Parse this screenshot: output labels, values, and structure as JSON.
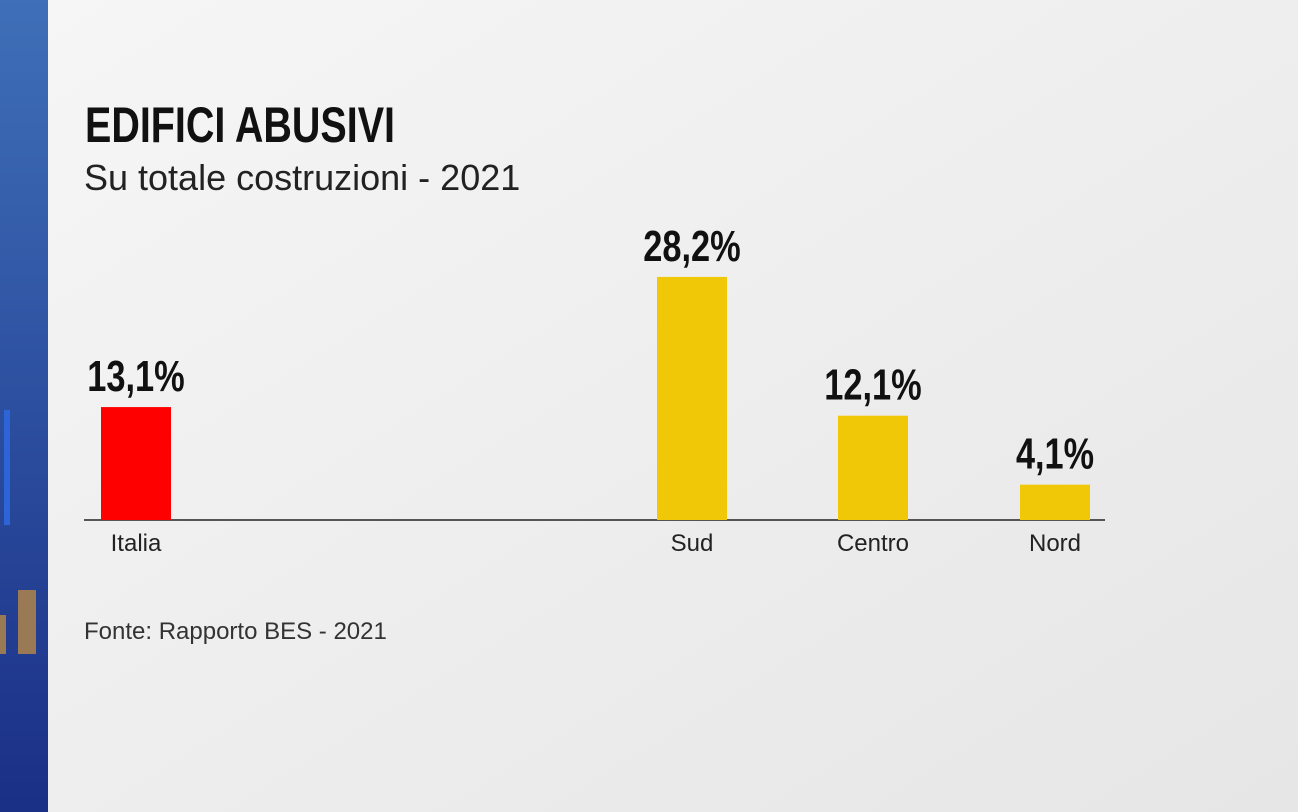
{
  "chart_data": {
    "type": "bar",
    "title": "EDIFICI ABUSIVI",
    "subtitle": "Su totale costruzioni - 2021",
    "categories": [
      "Italia",
      "Sud",
      "Centro",
      "Nord"
    ],
    "values": [
      13.1,
      28.2,
      12.1,
      4.1
    ],
    "value_labels": [
      "13,1%",
      "28,2%",
      "12,1%",
      "4,1%"
    ],
    "colors": [
      "#ff0000",
      "#f0c808",
      "#f0c808",
      "#f0c808"
    ],
    "source": "Fonte:  Rapporto BES - 2021"
  }
}
